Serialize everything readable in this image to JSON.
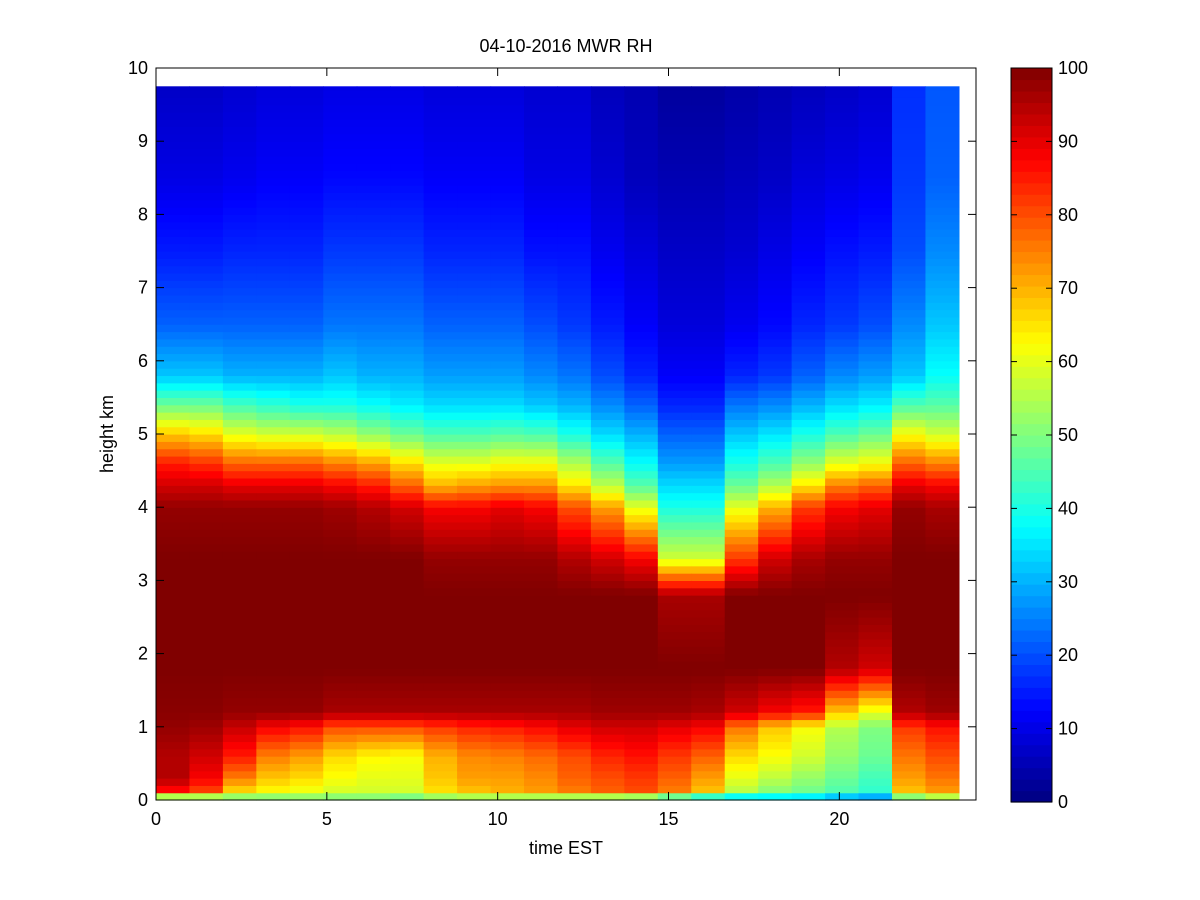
{
  "chart_data": {
    "type": "heatmap",
    "title": "04-10-2016 MWR RH",
    "xlabel": "time EST",
    "ylabel": "height km",
    "xlim": [
      0,
      24
    ],
    "ylim": [
      0,
      10
    ],
    "x_ticks": [
      0,
      5,
      10,
      15,
      20
    ],
    "y_ticks": [
      0,
      1,
      2,
      3,
      4,
      5,
      6,
      7,
      8,
      9,
      10
    ],
    "grid": false,
    "colormap": "jet",
    "colorbar": {
      "range": [
        0,
        100
      ],
      "ticks": [
        0,
        10,
        20,
        30,
        40,
        50,
        60,
        70,
        80,
        90,
        100
      ]
    },
    "time_hours": [
      0.5,
      1.5,
      2.5,
      3.5,
      4.5,
      5.5,
      6.5,
      7.5,
      8.5,
      9.5,
      10.5,
      11.5,
      12.5,
      13.5,
      14.5,
      15.5,
      16.5,
      17.5,
      18.5,
      19.5,
      20.5,
      21.5,
      22.5,
      23.5
    ],
    "data_extent": {
      "x": [
        0,
        23.5
      ],
      "y": [
        0,
        9.75
      ]
    },
    "profile_heights_km": [
      0,
      0.1,
      0.3,
      0.6,
      1.0,
      1.2,
      1.8,
      2.8,
      3.3,
      4.0,
      4.3,
      4.6,
      5.0,
      5.4,
      5.8,
      6.5,
      7.5,
      8.5,
      9.75
    ],
    "rh_profiles": [
      [
        25,
        85,
        95,
        95,
        98,
        99,
        100,
        100,
        100,
        98,
        92,
        85,
        68,
        48,
        32,
        22,
        15,
        10,
        7
      ],
      [
        30,
        80,
        88,
        92,
        97,
        99,
        100,
        100,
        100,
        98,
        92,
        83,
        66,
        48,
        32,
        22,
        15,
        10,
        7
      ],
      [
        40,
        65,
        75,
        85,
        93,
        98,
        100,
        100,
        100,
        98,
        90,
        78,
        60,
        44,
        30,
        22,
        16,
        11,
        8
      ],
      [
        42,
        62,
        68,
        75,
        88,
        98,
        100,
        100,
        100,
        98,
        90,
        78,
        58,
        42,
        30,
        22,
        16,
        12,
        9
      ],
      [
        45,
        60,
        66,
        72,
        86,
        98,
        100,
        100,
        100,
        98,
        90,
        78,
        58,
        40,
        30,
        22,
        16,
        12,
        9
      ],
      [
        45,
        58,
        62,
        66,
        80,
        96,
        100,
        100,
        100,
        97,
        88,
        75,
        56,
        40,
        32,
        24,
        18,
        13,
        10
      ],
      [
        45,
        58,
        60,
        63,
        80,
        96,
        100,
        100,
        100,
        95,
        85,
        72,
        52,
        38,
        30,
        24,
        18,
        13,
        10
      ],
      [
        42,
        58,
        60,
        62,
        80,
        96,
        100,
        100,
        100,
        92,
        78,
        66,
        48,
        36,
        30,
        24,
        18,
        13,
        10
      ],
      [
        42,
        65,
        68,
        70,
        82,
        96,
        100,
        100,
        98,
        88,
        70,
        60,
        45,
        34,
        28,
        22,
        16,
        12,
        9
      ],
      [
        42,
        68,
        72,
        74,
        84,
        96,
        100,
        100,
        98,
        88,
        72,
        60,
        45,
        34,
        28,
        22,
        16,
        12,
        9
      ],
      [
        40,
        70,
        72,
        75,
        85,
        96,
        100,
        100,
        98,
        90,
        73,
        62,
        46,
        34,
        28,
        22,
        16,
        12,
        9
      ],
      [
        38,
        72,
        74,
        77,
        87,
        96,
        100,
        100,
        98,
        88,
        73,
        62,
        45,
        32,
        26,
        20,
        14,
        10,
        8
      ],
      [
        35,
        75,
        78,
        80,
        90,
        96,
        100,
        100,
        95,
        80,
        65,
        55,
        40,
        30,
        24,
        18,
        14,
        10,
        8
      ],
      [
        32,
        78,
        80,
        84,
        92,
        97,
        100,
        100,
        92,
        72,
        56,
        46,
        34,
        26,
        20,
        15,
        11,
        8,
        6
      ],
      [
        28,
        80,
        82,
        86,
        92,
        97,
        100,
        100,
        88,
        60,
        46,
        38,
        30,
        22,
        16,
        12,
        9,
        6,
        5
      ],
      [
        22,
        75,
        78,
        82,
        90,
        97,
        100,
        96,
        58,
        40,
        34,
        28,
        22,
        16,
        12,
        9,
        7,
        5,
        3
      ],
      [
        18,
        68,
        72,
        78,
        88,
        96,
        100,
        96,
        58,
        40,
        34,
        28,
        22,
        16,
        12,
        9,
        7,
        5,
        3
      ],
      [
        22,
        55,
        60,
        66,
        76,
        92,
        100,
        100,
        82,
        60,
        48,
        40,
        32,
        24,
        16,
        11,
        8,
        6,
        4
      ],
      [
        25,
        50,
        56,
        62,
        68,
        88,
        100,
        100,
        92,
        70,
        55,
        45,
        35,
        26,
        18,
        13,
        10,
        7,
        5
      ],
      [
        25,
        48,
        52,
        58,
        62,
        85,
        100,
        100,
        96,
        82,
        65,
        52,
        40,
        30,
        22,
        16,
        12,
        9,
        6
      ],
      [
        20,
        45,
        48,
        52,
        55,
        68,
        95,
        100,
        98,
        88,
        75,
        60,
        45,
        34,
        26,
        18,
        14,
        10,
        7
      ],
      [
        18,
        42,
        44,
        48,
        50,
        60,
        92,
        100,
        98,
        90,
        78,
        62,
        48,
        36,
        28,
        20,
        15,
        11,
        8
      ],
      [
        35,
        68,
        72,
        76,
        82,
        95,
        100,
        100,
        100,
        98,
        90,
        78,
        62,
        45,
        32,
        26,
        20,
        18,
        17
      ],
      [
        40,
        72,
        76,
        80,
        86,
        97,
        100,
        100,
        100,
        96,
        88,
        75,
        58,
        46,
        38,
        32,
        26,
        22,
        21
      ]
    ]
  }
}
